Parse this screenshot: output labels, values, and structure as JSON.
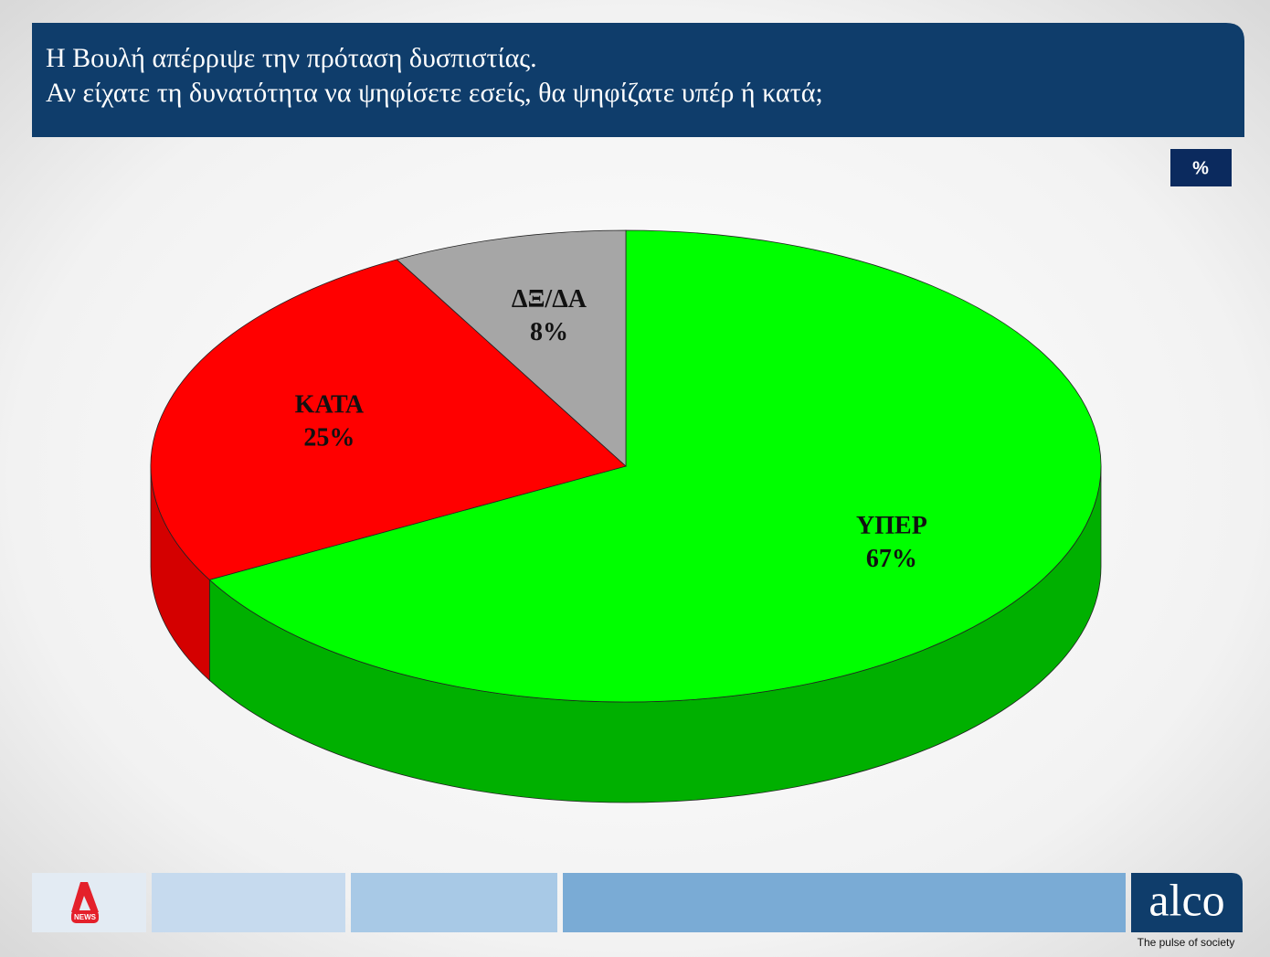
{
  "chart_data": {
    "type": "pie3d",
    "title": [
      "Η Βουλή απέρριψε την πρόταση δυσπιστίας.",
      "Αν είχατε τη δυνατότητα να ψηφίσετε εσείς, θα ψηφίζατε υπέρ ή κατά;"
    ],
    "unit": "%",
    "categories": [
      "ΥΠΕΡ",
      "ΚΑΤΑ",
      "ΔΞ/ΔΑ"
    ],
    "values": [
      67,
      25,
      8
    ],
    "value_labels": [
      "67%",
      "25%",
      "8%"
    ],
    "colors": [
      "#00ff00",
      "#ff0000",
      "#a6a6a6"
    ],
    "side_colors": [
      "#00b000",
      "#d40000",
      "#7f7f7f"
    ]
  },
  "footer": {
    "news_label": "NEWS",
    "brand": "alco",
    "tagline": "The pulse of society"
  }
}
